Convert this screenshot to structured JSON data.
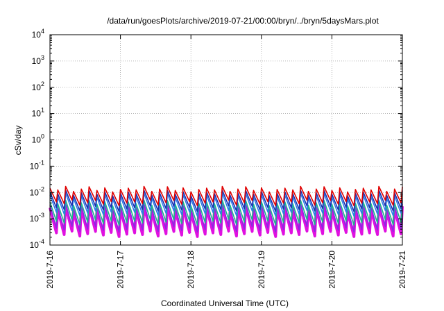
{
  "chart_data": {
    "type": "line",
    "title": "/data/run/goesPlots/archive/2019-07-21/00:00/bryn/../bryn/5daysMars.plot",
    "xlabel": "Coordinated Universal Time (UTC)",
    "ylabel": "cSv/day",
    "y_scale": "log",
    "ylim": [
      0.0001,
      10000
    ],
    "xlim_days": [
      0,
      5
    ],
    "grid": true,
    "x_ticks": [
      "2019-7-16",
      "2019-7-17",
      "2019-7-18",
      "2019-7-19",
      "2019-7-20",
      "2019-7-21"
    ],
    "y_ticks": [
      {
        "base": "10",
        "exp": "-4"
      },
      {
        "base": "10",
        "exp": "-3"
      },
      {
        "base": "10",
        "exp": "-2"
      },
      {
        "base": "10",
        "exp": "-1"
      },
      {
        "base": "10",
        "exp": "0"
      },
      {
        "base": "10",
        "exp": "1"
      },
      {
        "base": "10",
        "exp": "2"
      },
      {
        "base": "10",
        "exp": "3"
      },
      {
        "base": "10",
        "exp": "4"
      }
    ],
    "sawtooth": {
      "cycles": 45,
      "peak_amplitude_pattern": [
        0.0145,
        0.0125,
        0.017,
        0.011,
        0.0135,
        0.0165,
        0.012,
        0.015,
        0.0105,
        0.013
      ]
    },
    "series": [
      {
        "name": "red",
        "color": "#e00000",
        "peak_factor": 1.0,
        "trough_factor": 0.3,
        "stroke": 1.6
      },
      {
        "name": "navy",
        "color": "#1a2fb0",
        "peak_factor": 0.72,
        "trough_factor": 0.18,
        "stroke": 1.6
      },
      {
        "name": "blue",
        "color": "#2a7de8",
        "peak_factor": 0.55,
        "trough_factor": 0.12,
        "stroke": 1.6
      },
      {
        "name": "teal-green",
        "color": "#19b88a",
        "peak_factor": 0.3,
        "trough_factor": 0.055,
        "stroke": 1.6
      },
      {
        "name": "purple",
        "color": "#8a2be2",
        "peak_factor": 0.22,
        "trough_factor": 0.03,
        "stroke": 1.6
      },
      {
        "name": "magenta",
        "color": "#e010e0",
        "peak_factor": 0.18,
        "trough_factor": 0.02,
        "stroke": 4.0
      }
    ]
  }
}
